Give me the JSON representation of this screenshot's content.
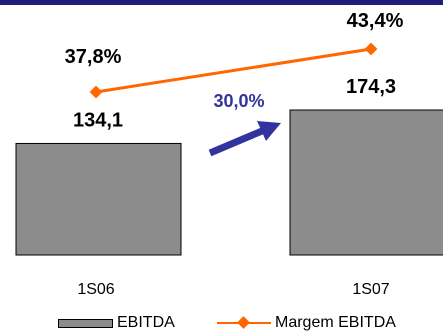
{
  "chart_data": {
    "type": "bar",
    "categories": [
      "1S06",
      "1S07"
    ],
    "series": [
      {
        "name": "EBITDA",
        "kind": "bar",
        "values": [
          134.1,
          174.3
        ],
        "labels": [
          "134,1",
          "174,3"
        ],
        "color": "#8c8c8c"
      },
      {
        "name": "Margem EBITDA",
        "kind": "line",
        "values": [
          37.8,
          43.4
        ],
        "labels": [
          "37,8%",
          "43,4%"
        ],
        "color": "#ff6600"
      }
    ],
    "annotation": {
      "text": "30,0%",
      "color": "#3333a0"
    },
    "legend": [
      "EBITDA",
      "Margem EBITDA"
    ],
    "legend_position": "bottom",
    "title": "",
    "xlabel": "",
    "ylabel": "",
    "grid": false
  }
}
